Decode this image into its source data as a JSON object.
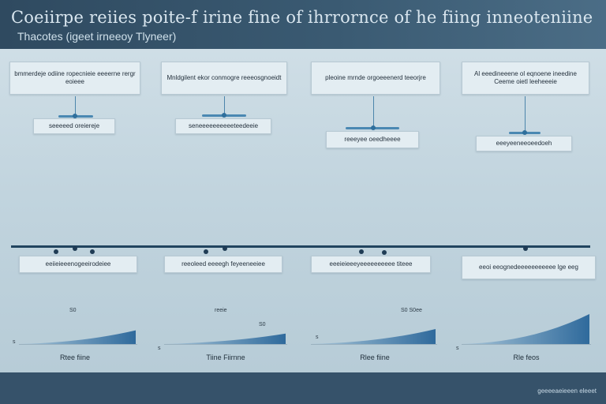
{
  "header": {
    "title": "Coeiirpe reiies poite-f irine fine of ihrrornce of he fiing inneoteniine",
    "subtitle": "Thacotes (igeet irneeoy Tlyneer)"
  },
  "top_labels": [
    "bmmerdeje odiine ropecnieie eeeerne rergr eoieee",
    "Mnldgilent ekor conmogre reeeosgnoeidt",
    "pleoine mrnde orgoeeenerd teeorjre",
    "Al eeedineeene ol eqnoene ineedine Ceeme oietl leeheeeie"
  ],
  "mid_labels": [
    "seeeeed oreiereje",
    "seneeeeeeeeeeteedeeie",
    "reeeyee oeedheeee",
    "eeeyeeneeoeedoeh"
  ],
  "lower_labels": [
    "eeiieieeenogeeirodeiee",
    "reeoleed eeeegh feyeeneeiee",
    "eeeieieeeyeeeeeeeeee titeee",
    "eeoi eeognedeeeeeeeeeee lge eeg"
  ],
  "charts": [
    {
      "top_label": "S0",
      "mid_label": "",
      "tick": "s",
      "caption": "Rtee fiine",
      "end_value": 0.62
    },
    {
      "top_label": "reeie",
      "mid_label": "S0",
      "tick": "s",
      "caption": "Tiine Fiirnne",
      "end_value": 0.55
    },
    {
      "top_label": "S0 S0ee",
      "mid_label": "",
      "tick": "s",
      "caption": "Rlee fiine",
      "end_value": 0.68
    },
    {
      "top_label": "",
      "mid_label": "",
      "tick": "s",
      "caption": "Rle feos",
      "end_value": 1.0
    }
  ],
  "footer": {
    "text": "geeeeaeieeen eleeet"
  }
}
